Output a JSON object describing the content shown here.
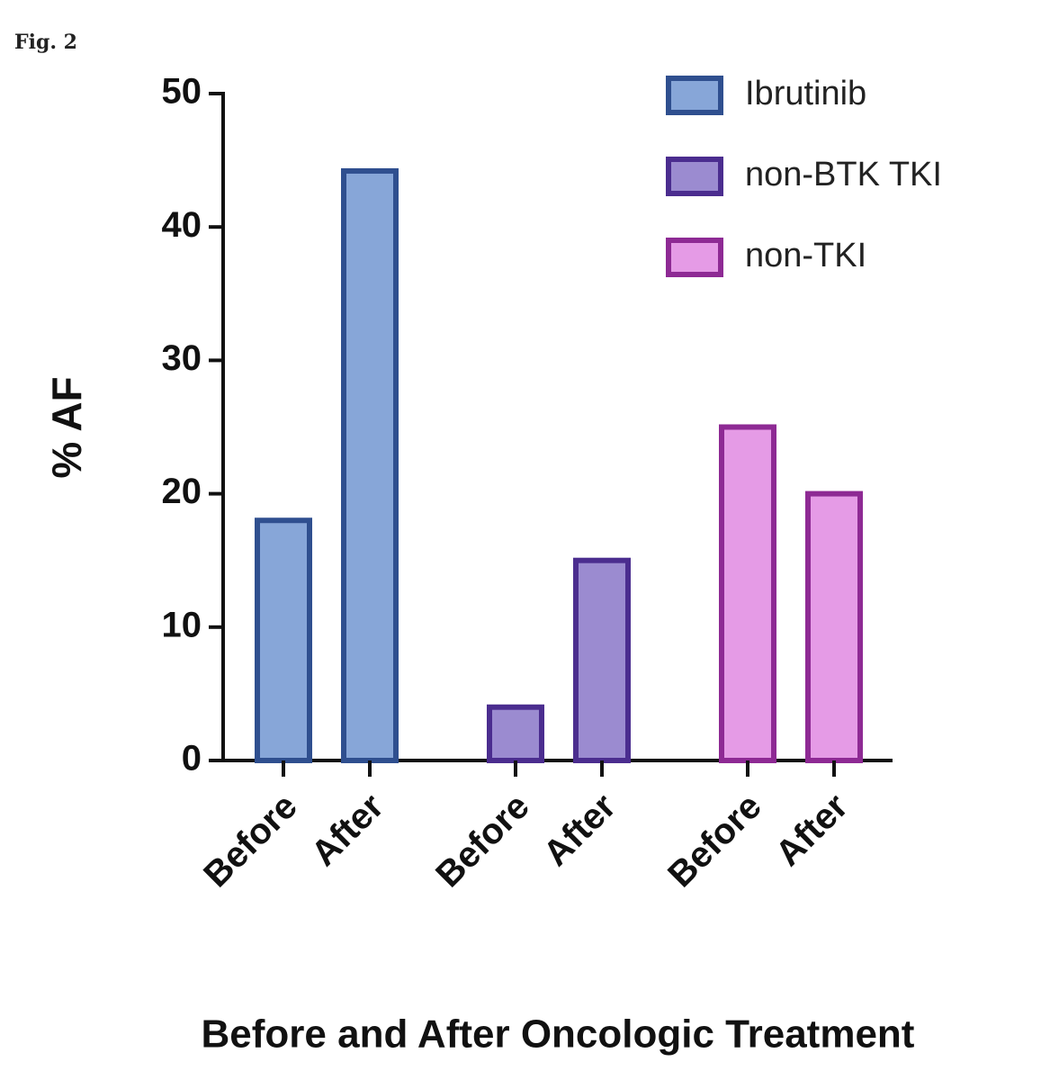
{
  "figure_label": "Fig. 2",
  "chart_data": {
    "type": "bar",
    "xlabel": "Before and After Oncologic Treatment",
    "ylabel": "% AF",
    "categories": [
      "Before",
      "After"
    ],
    "series": [
      {
        "name": "Ibrutinib",
        "color": "#87a6d8",
        "edgecolor": "#2f4f8f",
        "values": [
          18,
          44.2
        ]
      },
      {
        "name": "non-BTK TKI",
        "color": "#9b8bd0",
        "edgecolor": "#4b2d8f",
        "values": [
          4,
          15
        ]
      },
      {
        "name": "non-TKI",
        "color": "#e59be6",
        "edgecolor": "#8e2a94",
        "values": [
          25,
          20
        ]
      }
    ],
    "ylim": [
      0,
      50
    ],
    "yticks": [
      0,
      10,
      20,
      30,
      40,
      50
    ],
    "legend": "upper right"
  }
}
